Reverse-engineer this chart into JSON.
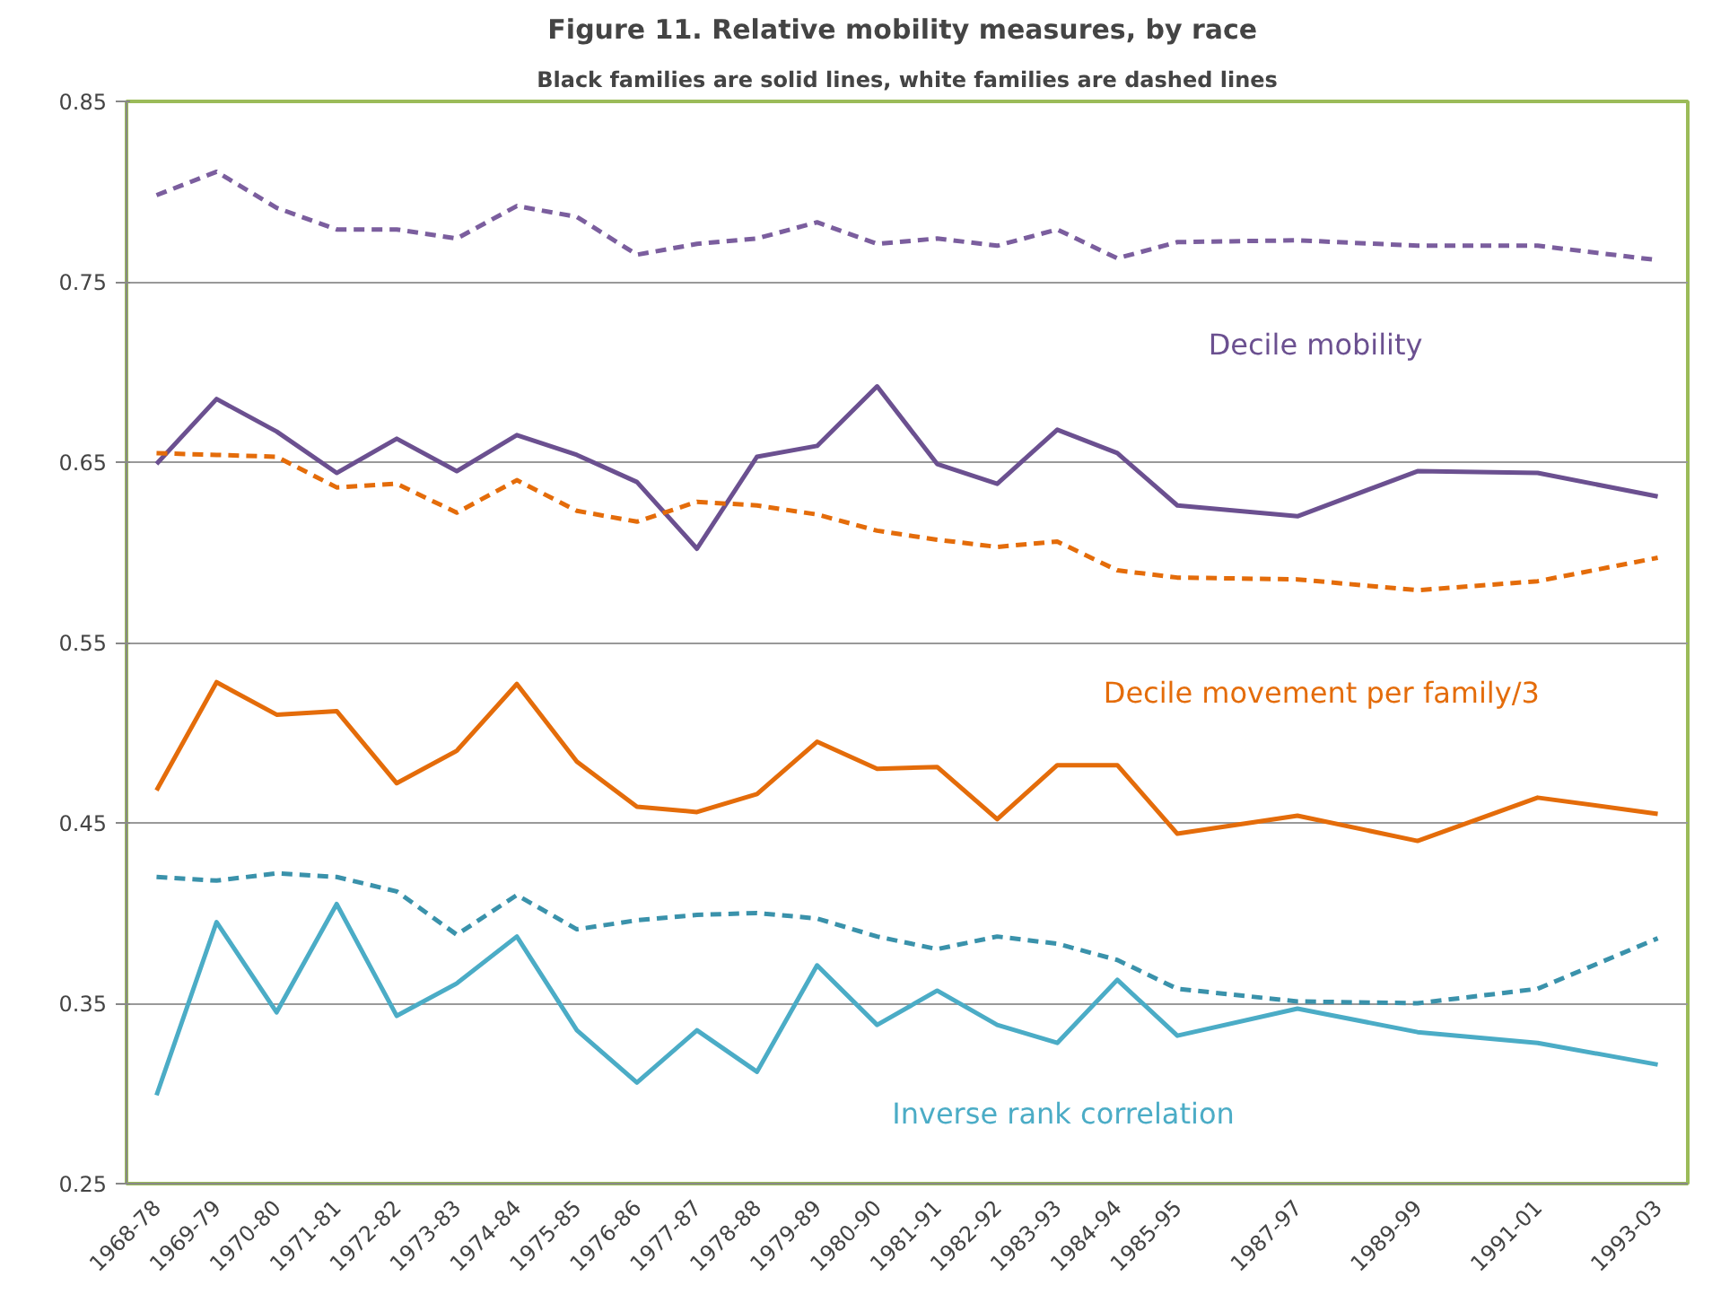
{
  "chart_data": {
    "type": "line",
    "title": "Figure 11.  Relative mobility measures, by race",
    "subtitle": "Black families are solid lines, white families are dashed lines",
    "categories": [
      "1968-78",
      "1969-79",
      "1970-80",
      "1971-81",
      "1972-82",
      "1973-83",
      "1974-84",
      "1975-85",
      "1976-86",
      "1977-87",
      "1978-88",
      "1979-89",
      "1980-90",
      "1981-91",
      "1982-92",
      "1983-93",
      "1984-94",
      "1985-95",
      null,
      "1987-97",
      null,
      "1989-99",
      null,
      "1991-01",
      null,
      "1993-03"
    ],
    "ylim": [
      0.25,
      0.85
    ],
    "yticks": [
      {
        "value": 0.25,
        "label": "0.25"
      },
      {
        "value": 0.35,
        "label": "0.35"
      },
      {
        "value": 0.45,
        "label": "0.45"
      },
      {
        "value": 0.55,
        "label": "0.55"
      },
      {
        "value": 0.65,
        "label": "0.65"
      },
      {
        "value": 0.75,
        "label": "0.75"
      },
      {
        "value": 0.85,
        "label": "0.85"
      }
    ],
    "grid": "y",
    "marker": "none",
    "series": [
      {
        "color": "#7b5e9e",
        "line_style": "dashed",
        "values": [
          0.798,
          0.811,
          0.791,
          0.779,
          0.779,
          0.774,
          0.792,
          0.786,
          0.765,
          0.771,
          0.774,
          0.783,
          0.771,
          0.774,
          0.77,
          0.779,
          0.763,
          0.772,
          null,
          0.773,
          null,
          0.77,
          null,
          0.77,
          null,
          0.762
        ]
      },
      {
        "color": "#6b5090",
        "line_style": "solid",
        "values": [
          0.649,
          0.685,
          0.667,
          0.644,
          0.663,
          0.645,
          0.665,
          0.654,
          0.639,
          0.602,
          0.653,
          0.659,
          0.692,
          0.649,
          0.638,
          0.668,
          0.655,
          0.626,
          null,
          0.62,
          null,
          0.645,
          null,
          0.644,
          null,
          0.631
        ]
      },
      {
        "color": "#e46c0a",
        "line_style": "dashed",
        "values": [
          0.655,
          0.654,
          0.653,
          0.636,
          0.638,
          0.622,
          0.64,
          0.623,
          0.617,
          0.628,
          0.626,
          0.621,
          0.612,
          0.607,
          0.603,
          0.606,
          0.59,
          0.586,
          null,
          0.585,
          null,
          0.579,
          null,
          0.584,
          null,
          0.597
        ]
      },
      {
        "color": "#e46c0a",
        "line_style": "solid",
        "values": [
          0.468,
          0.528,
          0.51,
          0.512,
          0.472,
          0.49,
          0.527,
          0.484,
          0.459,
          0.456,
          0.466,
          0.495,
          0.48,
          0.481,
          0.452,
          0.482,
          0.482,
          0.444,
          null,
          0.454,
          null,
          0.44,
          null,
          0.464,
          null,
          0.455
        ]
      },
      {
        "color": "#3a92ab",
        "line_style": "dashed",
        "values": [
          0.42,
          0.418,
          0.422,
          0.42,
          0.412,
          0.388,
          0.41,
          0.391,
          0.396,
          0.399,
          0.4,
          0.397,
          0.387,
          0.38,
          0.387,
          0.383,
          0.374,
          0.358,
          null,
          0.351,
          null,
          0.35,
          null,
          0.358,
          null,
          0.386
        ]
      },
      {
        "color": "#4bacc6",
        "line_style": "solid",
        "values": [
          0.299,
          0.395,
          0.345,
          0.405,
          0.343,
          0.361,
          0.387,
          0.335,
          0.306,
          0.335,
          0.312,
          0.371,
          0.338,
          0.357,
          0.338,
          0.328,
          0.363,
          0.332,
          null,
          0.347,
          null,
          0.334,
          null,
          0.328,
          null,
          0.316
        ]
      }
    ],
    "annotations": [
      "Decile mobility",
      "Decile movement per family/3",
      "Inverse rank correlation"
    ]
  }
}
